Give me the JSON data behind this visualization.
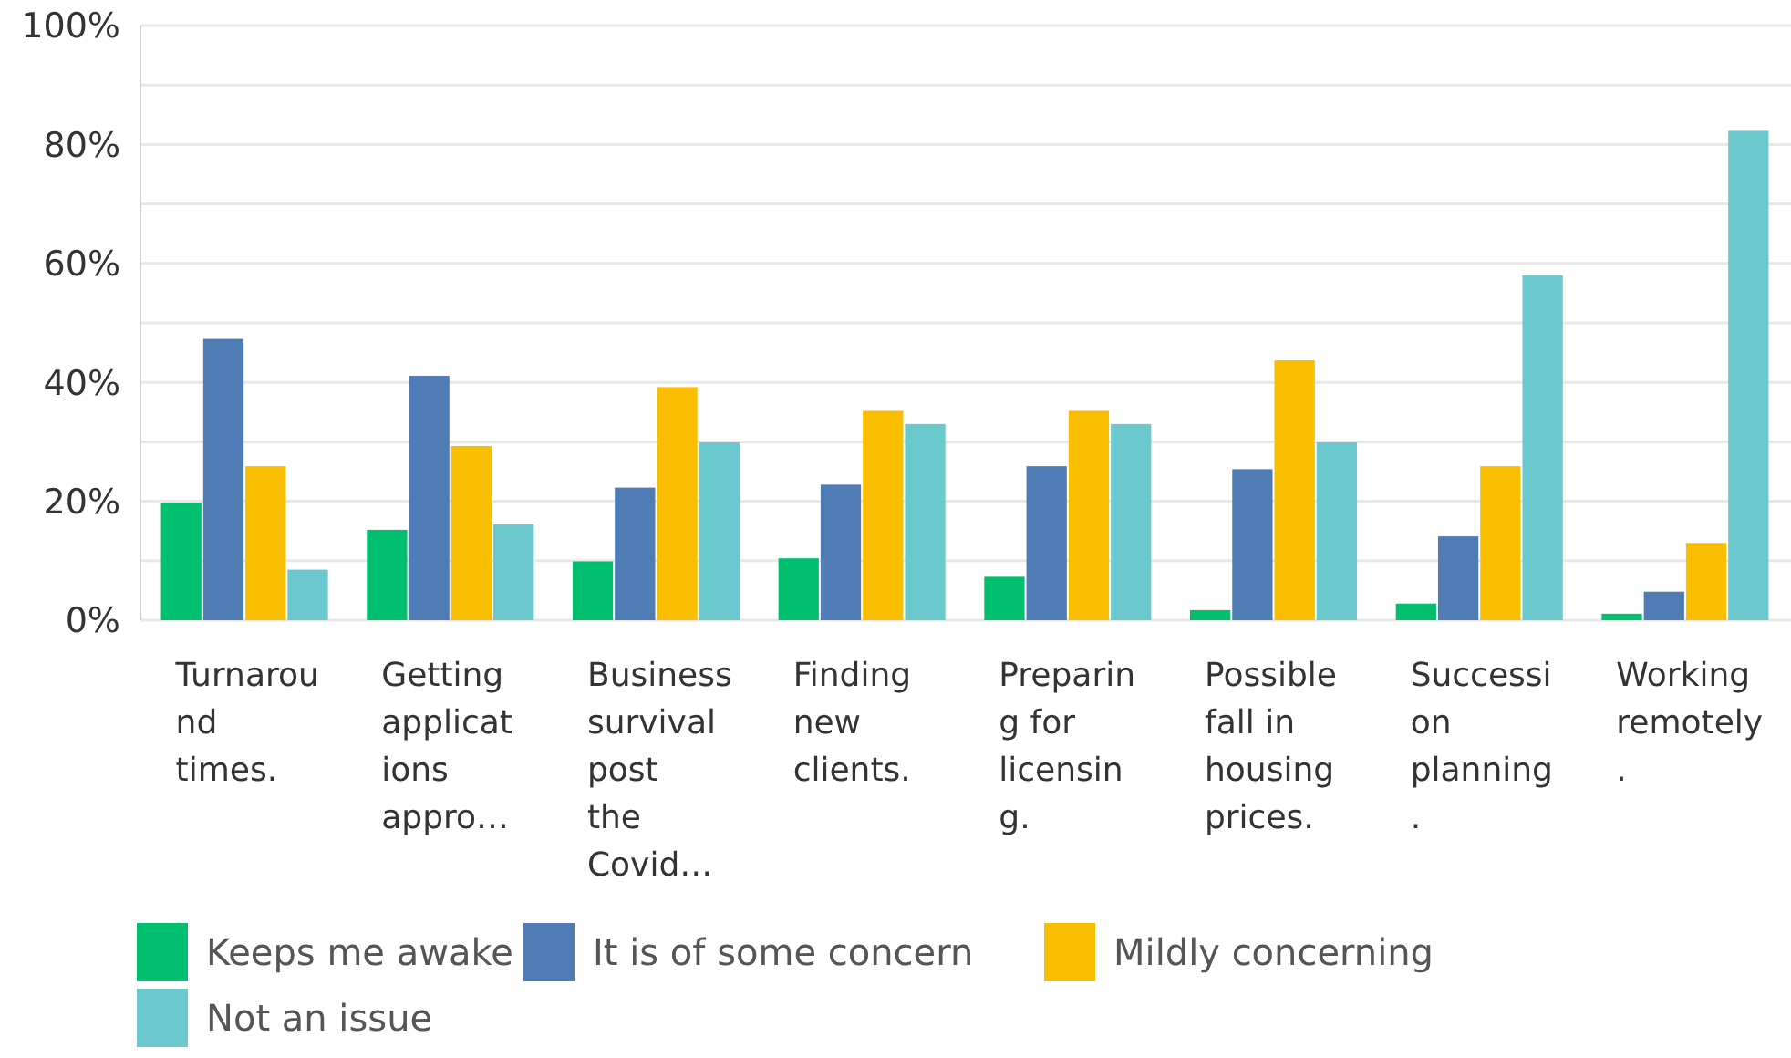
{
  "chart_data": {
    "type": "bar",
    "categories": [
      "Turnaround times.",
      "Getting applications appro…",
      "Business survival post the Covid…",
      "Finding new clients.",
      "Preparing for licensing.",
      "Possible fall in housing prices.",
      "Succession planning.",
      "Working remotely."
    ],
    "series": [
      {
        "name": "Keeps me awake",
        "color": "#00bf6f",
        "values": [
          19.7,
          15.2,
          9.9,
          10.4,
          7.3,
          1.7,
          2.8,
          1.1
        ]
      },
      {
        "name": "It is of some concern",
        "color": "#507cb6",
        "values": [
          47.3,
          41.1,
          22.3,
          22.8,
          25.9,
          25.4,
          14.1,
          4.8
        ]
      },
      {
        "name": "Mildly concerning",
        "color": "#f9be00",
        "values": [
          25.9,
          29.3,
          39.2,
          35.2,
          35.2,
          43.7,
          25.9,
          13
        ]
      },
      {
        "name": "Not an issue",
        "color": "#6bc8cd",
        "values": [
          8.5,
          16.1,
          29.9,
          33,
          33,
          29.9,
          58,
          82.3
        ]
      }
    ],
    "ylim": [
      0,
      100
    ],
    "yticks": [
      {
        "value": 0,
        "label": "0%"
      },
      {
        "value": 10,
        "label": null
      },
      {
        "value": 20,
        "label": "20%"
      },
      {
        "value": 30,
        "label": null
      },
      {
        "value": 40,
        "label": "40%"
      },
      {
        "value": 50,
        "label": null
      },
      {
        "value": 60,
        "label": "60%"
      },
      {
        "value": 70,
        "label": null
      },
      {
        "value": 80,
        "label": "80%"
      },
      {
        "value": 90,
        "label": null
      },
      {
        "value": 100,
        "label": "100%"
      }
    ],
    "grid": "y",
    "legend": "bottom"
  }
}
